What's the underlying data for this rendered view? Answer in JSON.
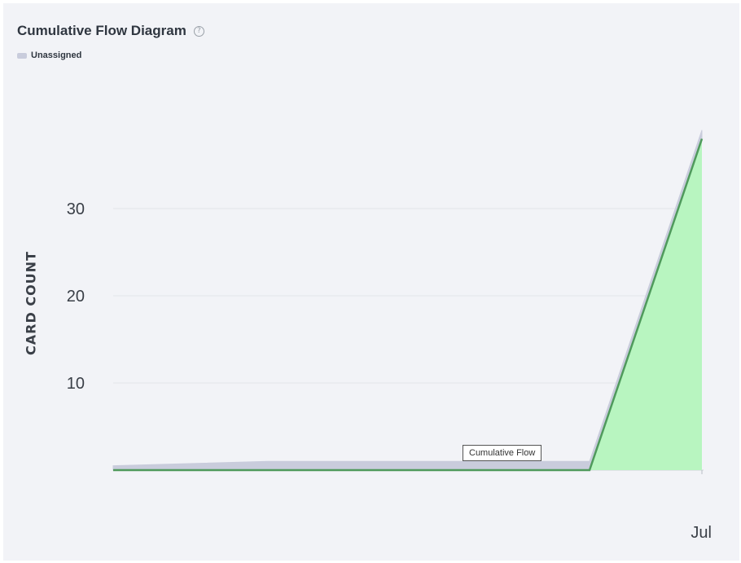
{
  "header": {
    "title": "Cumulative Flow Diagram",
    "help_icon": "question-circle-icon"
  },
  "tooltip": "Cumulative Flow",
  "colors": {
    "unassigned_fill": "#c9ccdc",
    "done_fill": "#b8f5c0",
    "done_line": "#4f9a5c",
    "grid": "#e2e4ea"
  },
  "chart_data": {
    "type": "area",
    "stacked": true,
    "title": "Cumulative Flow Diagram",
    "ylabel": "CARD COUNT",
    "xlabel": "",
    "x_tick_labels": [
      "Jul"
    ],
    "y_ticks": [
      10,
      20,
      30
    ],
    "ylim": [
      0,
      39
    ],
    "grid": true,
    "legend": {
      "position": "top-left",
      "entries": [
        "Unassigned"
      ]
    },
    "x": [
      0,
      1,
      2,
      3,
      4
    ],
    "series": [
      {
        "name": "",
        "values": [
          0,
          0,
          0,
          0,
          38
        ]
      },
      {
        "name": "Unassigned",
        "values": [
          0.5,
          1,
          1,
          1,
          1
        ]
      }
    ]
  }
}
